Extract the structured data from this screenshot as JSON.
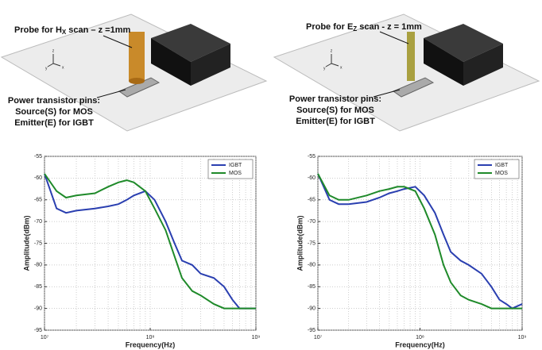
{
  "diagrams": [
    {
      "probe_label": {
        "before": "Probe for H",
        "sub": "X",
        "after": " scan – z =1mm"
      },
      "pin_label": [
        "Power transistor pins:",
        "Source(S) for MOS",
        "Emitter(E) for IGBT"
      ],
      "axis_letters": [
        "z",
        "y",
        "x"
      ]
    },
    {
      "probe_label": {
        "before": "Probe for E",
        "sub": "Z",
        "after": " scan  -  z = 1mm"
      },
      "pin_label": [
        "Power transistor pins:",
        "Source(S) for MOS",
        "Emitter(E) for IGBT"
      ],
      "axis_letters": [
        "z",
        "y",
        "x"
      ]
    }
  ],
  "chart_data": [
    {
      "type": "line",
      "xlabel": "Frequency(Hz)",
      "ylabel": "Amplitude(dBm)",
      "xscale": "log",
      "grid": true,
      "legend": "upper right",
      "x": [
        10000000,
        13000000,
        16000000,
        20000000,
        30000000,
        40000000,
        50000000,
        60000000,
        70000000,
        90000000,
        110000000,
        140000000,
        170000000,
        200000000,
        250000000,
        300000000,
        400000000,
        500000000,
        600000000,
        700000000,
        800000000,
        1000000000
      ],
      "xlim": [
        10000000,
        1000000000
      ],
      "xticks": [
        {
          "value": 10000000,
          "label": "10⁷"
        },
        {
          "value": 100000000,
          "label": "10⁸"
        },
        {
          "value": 1000000000,
          "label": "10⁹"
        }
      ],
      "ylim": [
        -95,
        -55
      ],
      "yticks": [
        -55,
        -60,
        -65,
        -70,
        -75,
        -80,
        -85,
        -90,
        -95
      ],
      "series": [
        {
          "name": "IGBT",
          "color": "#2a3fb0",
          "values": [
            -59,
            -67,
            -68,
            -67.5,
            -67,
            -66.5,
            -66,
            -65,
            -64,
            -63,
            -65,
            -70,
            -75,
            -79,
            -80,
            -82,
            -83,
            -85,
            -88,
            -90,
            -90,
            -90
          ]
        },
        {
          "name": "MOS",
          "color": "#1f8a2a",
          "values": [
            -59,
            -63,
            -64.5,
            -64,
            -63.5,
            -62,
            -61,
            -60.5,
            -61,
            -63,
            -67,
            -72,
            -78,
            -83,
            -86,
            -87,
            -89,
            -90,
            -90,
            -90,
            -90,
            -90
          ]
        }
      ]
    },
    {
      "type": "line",
      "xlabel": "Frequency(Hz)",
      "ylabel": "Amplitude(dBm)",
      "xscale": "log",
      "grid": true,
      "legend": "upper right",
      "x": [
        10000000,
        13000000,
        16000000,
        20000000,
        30000000,
        40000000,
        50000000,
        60000000,
        70000000,
        90000000,
        110000000,
        140000000,
        170000000,
        200000000,
        250000000,
        300000000,
        400000000,
        500000000,
        600000000,
        700000000,
        800000000,
        1000000000
      ],
      "xlim": [
        10000000,
        1000000000
      ],
      "xticks": [
        {
          "value": 10000000,
          "label": "10⁷"
        },
        {
          "value": 100000000,
          "label": "10⁸"
        },
        {
          "value": 1000000000,
          "label": "10⁹"
        }
      ],
      "ylim": [
        -95,
        -55
      ],
      "yticks": [
        -55,
        -60,
        -65,
        -70,
        -75,
        -80,
        -85,
        -90,
        -95
      ],
      "series": [
        {
          "name": "IGBT",
          "color": "#2a3fb0",
          "values": [
            -59,
            -65,
            -66,
            -66,
            -65.5,
            -64.5,
            -63.5,
            -63,
            -62.5,
            -62,
            -64,
            -68,
            -73,
            -77,
            -79,
            -80,
            -82,
            -85,
            -88,
            -89,
            -90,
            -89
          ]
        },
        {
          "name": "MOS",
          "color": "#1f8a2a",
          "values": [
            -59,
            -64,
            -65,
            -65,
            -64,
            -63,
            -62.5,
            -62,
            -62,
            -63,
            -67,
            -73,
            -80,
            -84,
            -87,
            -88,
            -89,
            -90,
            -90,
            -90,
            -90,
            -90
          ]
        }
      ]
    }
  ]
}
